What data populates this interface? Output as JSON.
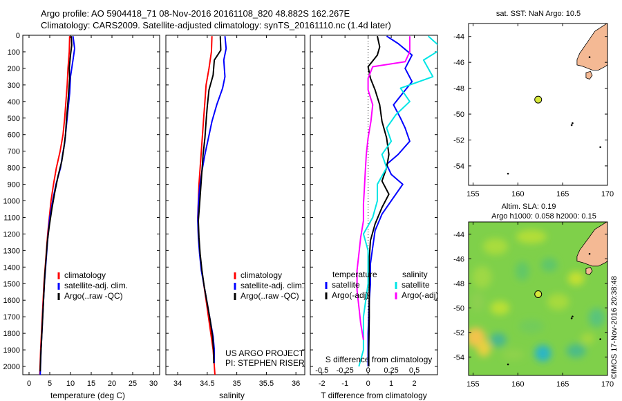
{
  "header": {
    "line1": "Argo profile: AO 5904418_71 08-Nov-2016 20161108_820 48.882S 162.267E",
    "line2": "Climatology: CARS2009. Satellite-adjusted climatology: synTS_20161110.nc (1.4d later)"
  },
  "colors": {
    "red": "#ff0000",
    "blue": "#0000ff",
    "black": "#000000",
    "cyan": "#00e5e5",
    "magenta": "#ff00ff",
    "land": "#f4b994",
    "marker": "#d6e83c"
  },
  "chart_data": [
    {
      "type": "line",
      "id": "temp",
      "xlabel": "temperature (deg C)",
      "ylim": [
        2050,
        0
      ],
      "xlim": [
        -1.5,
        31.5
      ],
      "xticks": [
        0,
        5,
        10,
        15,
        20,
        25,
        30
      ],
      "yticks": [
        0,
        100,
        200,
        300,
        400,
        500,
        600,
        700,
        800,
        900,
        1000,
        1100,
        1200,
        1300,
        1400,
        1500,
        1600,
        1700,
        1800,
        1900,
        2000
      ],
      "legend": [
        "climatology",
        "satellite-adj. clim.",
        "Argo(..raw -QC)"
      ],
      "series": [
        {
          "name": "climatology",
          "color": "red",
          "points": [
            [
              9.8,
              5
            ],
            [
              9.7,
              100
            ],
            [
              9.4,
              200
            ],
            [
              9.2,
              300
            ],
            [
              8.9,
              400
            ],
            [
              8.6,
              500
            ],
            [
              8.2,
              600
            ],
            [
              7.5,
              700
            ],
            [
              6.6,
              800
            ],
            [
              5.9,
              900
            ],
            [
              5.3,
              1000
            ],
            [
              4.9,
              1100
            ],
            [
              4.5,
              1200
            ],
            [
              4.2,
              1300
            ],
            [
              3.9,
              1400
            ],
            [
              3.6,
              1500
            ],
            [
              3.4,
              1600
            ],
            [
              3.2,
              1700
            ],
            [
              3.0,
              1800
            ],
            [
              2.8,
              1900
            ],
            [
              2.6,
              2050
            ]
          ]
        },
        {
          "name": "satellite-adj. clim.",
          "color": "blue",
          "points": [
            [
              10.6,
              5
            ],
            [
              11.0,
              80
            ],
            [
              10.6,
              150
            ],
            [
              10.0,
              250
            ],
            [
              9.8,
              350
            ],
            [
              9.4,
              450
            ],
            [
              9.0,
              550
            ],
            [
              8.6,
              650
            ],
            [
              8.1,
              720
            ],
            [
              7.6,
              800
            ],
            [
              6.5,
              900
            ],
            [
              5.7,
              1000
            ],
            [
              5.0,
              1100
            ],
            [
              4.6,
              1200
            ],
            [
              4.3,
              1300
            ],
            [
              4.0,
              1400
            ],
            [
              3.7,
              1500
            ],
            [
              3.5,
              1600
            ],
            [
              3.3,
              1700
            ],
            [
              3.1,
              1800
            ],
            [
              2.9,
              1900
            ],
            [
              2.7,
              2050
            ]
          ]
        },
        {
          "name": "Argo(..raw -QC)",
          "color": "black",
          "points": [
            [
              10.2,
              5
            ],
            [
              10.3,
              60
            ],
            [
              10.0,
              120
            ],
            [
              9.7,
              200
            ],
            [
              9.8,
              260
            ],
            [
              9.6,
              330
            ],
            [
              9.3,
              430
            ],
            [
              9.0,
              520
            ],
            [
              8.8,
              600
            ],
            [
              8.4,
              680
            ],
            [
              7.9,
              760
            ],
            [
              7.0,
              850
            ],
            [
              6.2,
              950
            ],
            [
              5.5,
              1050
            ],
            [
              4.9,
              1150
            ],
            [
              4.4,
              1250
            ],
            [
              4.1,
              1350
            ],
            [
              3.8,
              1450
            ],
            [
              3.6,
              1550
            ],
            [
              3.4,
              1650
            ],
            [
              3.2,
              1750
            ],
            [
              3.0,
              1850
            ],
            [
              2.8,
              1950
            ],
            [
              2.7,
              2030
            ]
          ]
        }
      ]
    },
    {
      "type": "line",
      "id": "sal",
      "xlabel": "salinity",
      "ylim": [
        2050,
        0
      ],
      "xlim": [
        33.8,
        36.15
      ],
      "xticks": [
        34,
        34.5,
        35,
        35.5,
        36
      ],
      "legend": [
        "climatology",
        "satellite-adj. clim.",
        "Argo(..raw -QC)"
      ],
      "annotation": [
        "US ARGO PROJECT",
        "PI: STEPHEN RISER"
      ],
      "series": [
        {
          "name": "climatology",
          "color": "red",
          "points": [
            [
              34.58,
              5
            ],
            [
              34.57,
              100
            ],
            [
              34.53,
              200
            ],
            [
              34.48,
              300
            ],
            [
              34.46,
              400
            ],
            [
              34.44,
              500
            ],
            [
              34.42,
              600
            ],
            [
              34.4,
              700
            ],
            [
              34.38,
              800
            ],
            [
              34.36,
              900
            ],
            [
              34.35,
              1000
            ],
            [
              34.34,
              1100
            ],
            [
              34.35,
              1200
            ],
            [
              34.37,
              1300
            ],
            [
              34.4,
              1400
            ],
            [
              34.44,
              1500
            ],
            [
              34.48,
              1600
            ],
            [
              34.52,
              1700
            ],
            [
              34.56,
              1800
            ],
            [
              34.6,
              1900
            ],
            [
              34.63,
              2050
            ]
          ]
        },
        {
          "name": "satellite-adj. clim.",
          "color": "blue",
          "points": [
            [
              34.8,
              5
            ],
            [
              34.82,
              80
            ],
            [
              34.78,
              150
            ],
            [
              34.8,
              250
            ],
            [
              34.76,
              320
            ],
            [
              34.66,
              420
            ],
            [
              34.58,
              520
            ],
            [
              34.52,
              620
            ],
            [
              34.46,
              720
            ],
            [
              34.41,
              820
            ],
            [
              34.37,
              920
            ],
            [
              34.35,
              1020
            ],
            [
              34.34,
              1120
            ],
            [
              34.35,
              1220
            ],
            [
              34.37,
              1320
            ],
            [
              34.4,
              1420
            ],
            [
              34.45,
              1520
            ],
            [
              34.5,
              1620
            ],
            [
              34.55,
              1720
            ],
            [
              34.6,
              1820
            ],
            [
              34.62,
              1900
            ],
            [
              34.62,
              1980
            ]
          ]
        },
        {
          "name": "Argo(..raw -QC)",
          "color": "black",
          "points": [
            [
              34.72,
              5
            ],
            [
              34.73,
              90
            ],
            [
              34.62,
              150
            ],
            [
              34.6,
              240
            ],
            [
              34.53,
              330
            ],
            [
              34.5,
              430
            ],
            [
              34.48,
              520
            ],
            [
              34.46,
              620
            ],
            [
              34.43,
              720
            ],
            [
              34.41,
              820
            ],
            [
              34.39,
              920
            ],
            [
              34.37,
              1020
            ],
            [
              34.35,
              1120
            ],
            [
              34.36,
              1220
            ],
            [
              34.38,
              1320
            ],
            [
              34.41,
              1420
            ],
            [
              34.45,
              1520
            ],
            [
              34.5,
              1620
            ],
            [
              34.55,
              1720
            ],
            [
              34.59,
              1820
            ],
            [
              34.61,
              1920
            ],
            [
              34.61,
              1980
            ]
          ]
        }
      ]
    },
    {
      "type": "line",
      "id": "diff",
      "xlabel": "T difference from climatology",
      "xlabel2": "S difference from climatology",
      "ylim": [
        2050,
        0
      ],
      "xlim": [
        -2.5,
        3.0
      ],
      "xticks": [
        -2,
        -1,
        0,
        1,
        2
      ],
      "xticks2": [
        -0.5,
        -0.25,
        0,
        0.25,
        0.5
      ],
      "xticks2_labels": [
        "-0.5",
        "-0.25",
        "0",
        "0.25",
        "0.5"
      ],
      "legend_headers": [
        "temperature",
        "salinity"
      ],
      "legend": [
        "satellite",
        "Argo(-adj)",
        "satellite",
        "Argo(-adj)"
      ],
      "series": [
        {
          "name": "satellite",
          "group": "temperature",
          "color": "blue",
          "points": [
            [
              0.8,
              5
            ],
            [
              1.3,
              50
            ],
            [
              1.9,
              120
            ],
            [
              1.6,
              200
            ],
            [
              1.9,
              280
            ],
            [
              1.5,
              350
            ],
            [
              1.1,
              420
            ],
            [
              1.4,
              500
            ],
            [
              1.6,
              560
            ],
            [
              1.8,
              640
            ],
            [
              1.3,
              720
            ],
            [
              0.8,
              780
            ],
            [
              1.0,
              840
            ],
            [
              1.5,
              900
            ],
            [
              1.1,
              980
            ],
            [
              0.6,
              1080
            ],
            [
              0.3,
              1180
            ],
            [
              0.2,
              1280
            ],
            [
              0.1,
              1380
            ],
            [
              0.1,
              1500
            ],
            [
              0.05,
              1600
            ],
            [
              0.0,
              1800
            ],
            [
              0.0,
              2000
            ]
          ]
        },
        {
          "name": "Argo(-adj)",
          "group": "temperature",
          "color": "black",
          "points": [
            [
              0.4,
              5
            ],
            [
              0.5,
              70
            ],
            [
              0.4,
              120
            ],
            [
              0.0,
              190
            ],
            [
              0.1,
              260
            ],
            [
              0.3,
              330
            ],
            [
              0.5,
              420
            ],
            [
              0.6,
              520
            ],
            [
              0.8,
              620
            ],
            [
              0.9,
              720
            ],
            [
              0.8,
              800
            ],
            [
              0.6,
              880
            ],
            [
              0.9,
              960
            ],
            [
              0.6,
              1040
            ],
            [
              0.3,
              1140
            ],
            [
              0.1,
              1240
            ],
            [
              0.05,
              1350
            ],
            [
              0.05,
              1500
            ],
            [
              0.05,
              1700
            ],
            [
              0.03,
              1900
            ],
            [
              0.03,
              2000
            ]
          ]
        },
        {
          "name": "satellite",
          "group": "salinity",
          "color": "cyan",
          "points": [
            [
              0.65,
              5
            ],
            [
              0.8,
              80
            ],
            [
              0.6,
              150
            ],
            [
              0.7,
              250
            ],
            [
              0.35,
              320
            ],
            [
              0.45,
              400
            ],
            [
              0.3,
              480
            ],
            [
              0.2,
              560
            ],
            [
              0.25,
              640
            ],
            [
              0.15,
              720
            ],
            [
              0.2,
              800
            ],
            [
              0.1,
              900
            ],
            [
              0.1,
              1000
            ],
            [
              0.05,
              1100
            ],
            [
              -0.05,
              1200
            ],
            [
              0.0,
              1300
            ],
            [
              0.0,
              1500
            ],
            [
              -0.05,
              1700
            ],
            [
              -0.05,
              1900
            ],
            [
              -0.1,
              2000
            ]
          ]
        },
        {
          "name": "Argo(-adj)",
          "group": "salinity",
          "color": "magenta",
          "points": [
            [
              0.45,
              5
            ],
            [
              0.45,
              100
            ],
            [
              0.4,
              160
            ],
            [
              0.05,
              190
            ],
            [
              0.0,
              260
            ],
            [
              0.0,
              330
            ],
            [
              0.05,
              420
            ],
            [
              0.03,
              520
            ],
            [
              0.0,
              620
            ],
            [
              -0.02,
              720
            ],
            [
              -0.03,
              820
            ],
            [
              -0.04,
              920
            ],
            [
              -0.05,
              1020
            ],
            [
              -0.05,
              1120
            ],
            [
              -0.08,
              1220
            ],
            [
              -0.1,
              1320
            ],
            [
              -0.12,
              1420
            ],
            [
              -0.12,
              1540
            ],
            [
              -0.1,
              1640
            ],
            [
              -0.08,
              1740
            ],
            [
              -0.05,
              1840
            ]
          ]
        }
      ]
    },
    {
      "type": "scatter",
      "id": "map1",
      "title": "sat. SST: NaN Argo: 10.5",
      "xlim": [
        154.5,
        170
      ],
      "ylim": [
        -55.5,
        -43
      ],
      "xticks": [
        155,
        160,
        165,
        170
      ],
      "yticks": [
        -44,
        -46,
        -48,
        -50,
        -52,
        -54
      ],
      "profile": {
        "lon": 162.267,
        "lat": -48.882
      }
    },
    {
      "type": "heatmap",
      "id": "map2",
      "title": "Altim. SLA: 0.19",
      "subtitle": "Argo h1000: 0.058 h2000: 0.15",
      "xlim": [
        154.5,
        170
      ],
      "ylim": [
        -55.5,
        -43
      ],
      "xticks": [
        155,
        160,
        165,
        170
      ],
      "yticks": [
        -44,
        -46,
        -48,
        -50,
        -52,
        -54
      ],
      "profile": {
        "lon": 162.267,
        "lat": -48.882
      }
    }
  ],
  "watermark": "©IMOS 17-Nov-2016 20:38:48"
}
